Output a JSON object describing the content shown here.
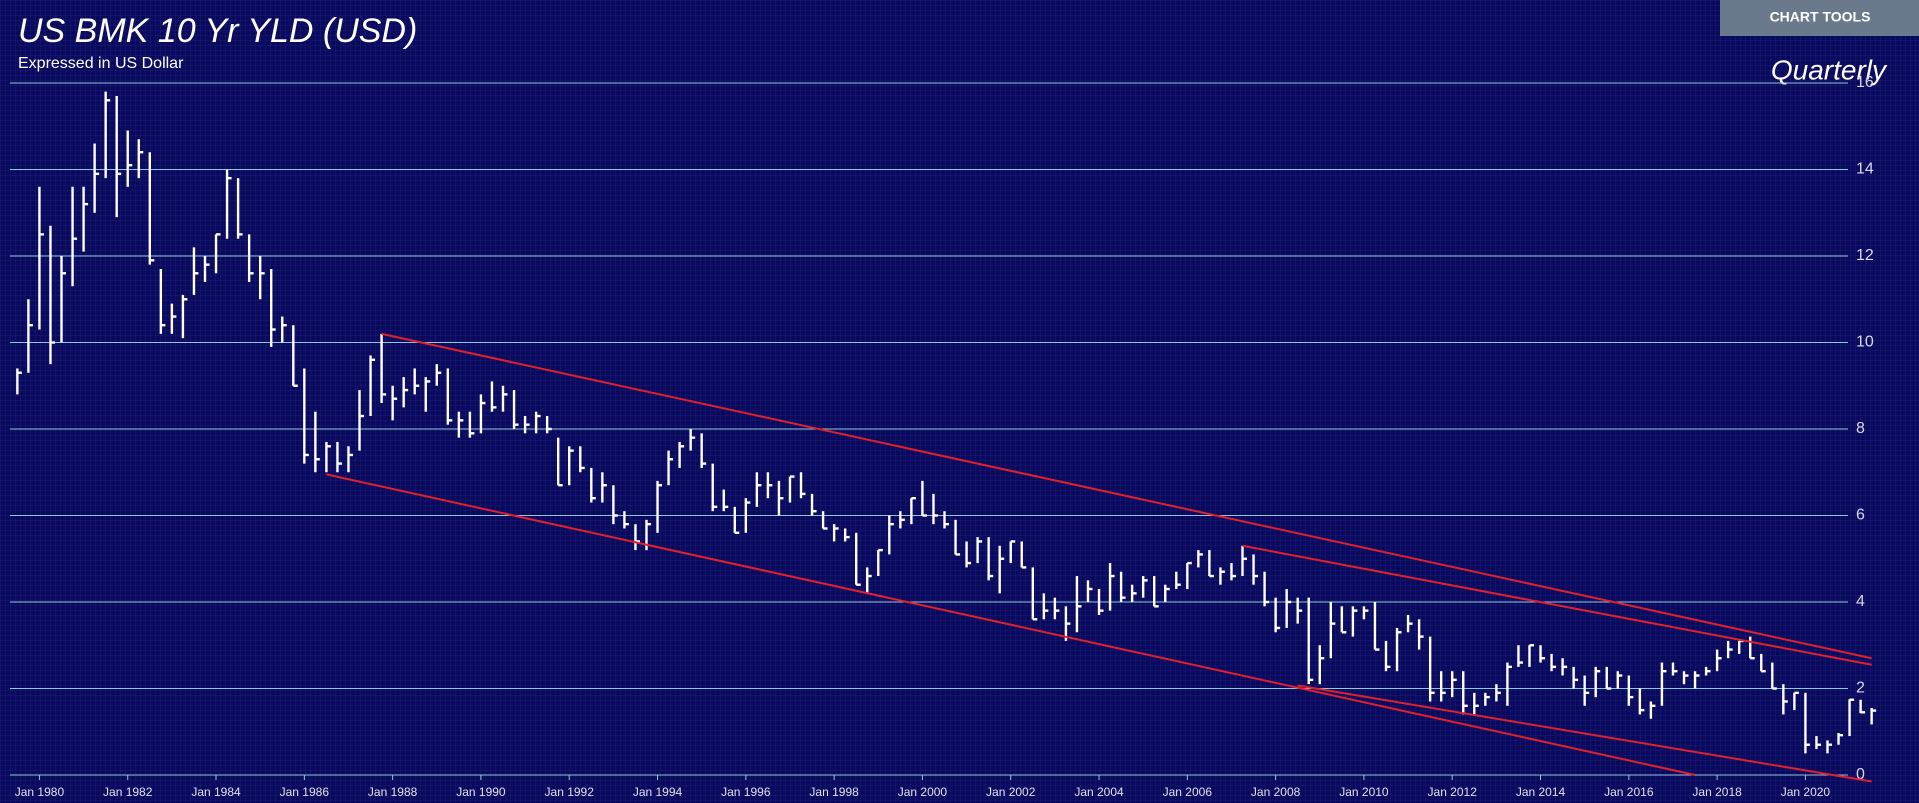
{
  "toolbar": {
    "button": "CHART TOOLS"
  },
  "chart_data": {
    "type": "hlc",
    "title": "US BMK 10 Yr YLD (USD)",
    "subtitle": "Expressed in US Dollar",
    "frequency_label": "Quarterly",
    "color": "#ffffff",
    "x": [
      "1979-07",
      "1979-10",
      "1980-01",
      "1980-04",
      "1980-07",
      "1980-10",
      "1981-01",
      "1981-04",
      "1981-07",
      "1981-10",
      "1982-01",
      "1982-04",
      "1982-07",
      "1982-10",
      "1983-01",
      "1983-04",
      "1983-07",
      "1983-10",
      "1984-01",
      "1984-04",
      "1984-07",
      "1984-10",
      "1985-01",
      "1985-04",
      "1985-07",
      "1985-10",
      "1986-01",
      "1986-04",
      "1986-07",
      "1986-10",
      "1987-01",
      "1987-04",
      "1987-07",
      "1987-10",
      "1988-01",
      "1988-04",
      "1988-07",
      "1988-10",
      "1989-01",
      "1989-04",
      "1989-07",
      "1989-10",
      "1990-01",
      "1990-04",
      "1990-07",
      "1990-10",
      "1991-01",
      "1991-04",
      "1991-07",
      "1991-10",
      "1992-01",
      "1992-04",
      "1992-07",
      "1992-10",
      "1993-01",
      "1993-04",
      "1993-07",
      "1993-10",
      "1994-01",
      "1994-04",
      "1994-07",
      "1994-10",
      "1995-01",
      "1995-04",
      "1995-07",
      "1995-10",
      "1996-01",
      "1996-04",
      "1996-07",
      "1996-10",
      "1997-01",
      "1997-04",
      "1997-07",
      "1997-10",
      "1998-01",
      "1998-04",
      "1998-07",
      "1998-10",
      "1999-01",
      "1999-04",
      "1999-07",
      "1999-10",
      "2000-01",
      "2000-04",
      "2000-07",
      "2000-10",
      "2001-01",
      "2001-04",
      "2001-07",
      "2001-10",
      "2002-01",
      "2002-04",
      "2002-07",
      "2002-10",
      "2003-01",
      "2003-04",
      "2003-07",
      "2003-10",
      "2004-01",
      "2004-04",
      "2004-07",
      "2004-10",
      "2005-01",
      "2005-04",
      "2005-07",
      "2005-10",
      "2006-01",
      "2006-04",
      "2006-07",
      "2006-10",
      "2007-01",
      "2007-04",
      "2007-07",
      "2007-10",
      "2008-01",
      "2008-04",
      "2008-07",
      "2008-10",
      "2009-01",
      "2009-04",
      "2009-07",
      "2009-10",
      "2010-01",
      "2010-04",
      "2010-07",
      "2010-10",
      "2011-01",
      "2011-04",
      "2011-07",
      "2011-10",
      "2012-01",
      "2012-04",
      "2012-07",
      "2012-10",
      "2013-01",
      "2013-04",
      "2013-07",
      "2013-10",
      "2014-01",
      "2014-04",
      "2014-07",
      "2014-10",
      "2015-01",
      "2015-04",
      "2015-07",
      "2015-10",
      "2016-01",
      "2016-04",
      "2016-07",
      "2016-10",
      "2017-01",
      "2017-04",
      "2017-07",
      "2017-10",
      "2018-01",
      "2018-04",
      "2018-07",
      "2018-10",
      "2019-01",
      "2019-04",
      "2019-07",
      "2019-10",
      "2020-01",
      "2020-04",
      "2020-07",
      "2020-10",
      "2021-01",
      "2021-04",
      "2021-07"
    ],
    "high": [
      9.4,
      11.0,
      13.6,
      12.7,
      12.0,
      13.6,
      13.6,
      14.6,
      15.8,
      15.7,
      14.9,
      14.7,
      14.4,
      11.7,
      10.9,
      11.1,
      12.2,
      12.0,
      12.5,
      14.0,
      13.8,
      12.5,
      12.0,
      11.7,
      10.6,
      10.4,
      9.4,
      8.4,
      7.7,
      7.7,
      7.6,
      8.9,
      9.7,
      10.2,
      9.0,
      9.2,
      9.4,
      9.2,
      9.5,
      9.4,
      8.4,
      8.4,
      8.8,
      9.1,
      9.0,
      8.9,
      8.3,
      8.4,
      8.3,
      7.8,
      7.6,
      7.6,
      7.1,
      7.0,
      6.7,
      6.1,
      5.8,
      5.9,
      6.8,
      7.5,
      7.7,
      8.0,
      7.9,
      7.2,
      6.6,
      6.2,
      6.4,
      7.0,
      7.0,
      6.8,
      6.9,
      7.0,
      6.5,
      6.1,
      5.8,
      5.7,
      5.6,
      4.8,
      5.2,
      6.0,
      6.1,
      6.4,
      6.8,
      6.5,
      6.1,
      5.9,
      5.4,
      5.5,
      5.5,
      5.3,
      5.4,
      5.4,
      4.8,
      4.2,
      4.1,
      3.9,
      4.6,
      4.5,
      4.3,
      4.9,
      4.7,
      4.4,
      4.6,
      4.6,
      4.4,
      4.7,
      4.9,
      5.2,
      5.2,
      4.8,
      4.9,
      5.3,
      5.1,
      4.7,
      4.1,
      4.3,
      4.1,
      4.1,
      3.0,
      4.0,
      3.9,
      3.9,
      3.9,
      4.0,
      3.1,
      3.4,
      3.7,
      3.6,
      3.2,
      2.4,
      2.4,
      2.4,
      1.9,
      1.9,
      2.1,
      2.6,
      3.0,
      3.0,
      3.0,
      2.8,
      2.7,
      2.5,
      2.3,
      2.5,
      2.5,
      2.4,
      2.3,
      2.0,
      1.7,
      2.6,
      2.6,
      2.4,
      2.4,
      2.5,
      2.9,
      3.1,
      3.1,
      3.2,
      2.8,
      2.6,
      2.1,
      1.9,
      1.9,
      0.9,
      0.8,
      0.97,
      1.75,
      1.74,
      1.55
    ],
    "low": [
      8.8,
      9.3,
      10.3,
      9.5,
      10.0,
      11.3,
      12.1,
      13.0,
      13.8,
      12.9,
      13.6,
      13.8,
      11.8,
      10.2,
      10.2,
      10.1,
      11.1,
      11.4,
      11.6,
      12.4,
      12.4,
      11.4,
      11.0,
      9.9,
      10.0,
      9.0,
      7.2,
      7.0,
      7.0,
      7.0,
      7.0,
      7.5,
      8.3,
      8.6,
      8.2,
      8.5,
      8.8,
      8.4,
      9.0,
      8.1,
      7.8,
      7.8,
      7.9,
      8.4,
      8.4,
      8.0,
      7.9,
      7.9,
      7.9,
      6.7,
      6.7,
      7.0,
      6.3,
      6.3,
      5.8,
      5.7,
      5.2,
      5.2,
      5.6,
      6.7,
      7.1,
      7.5,
      7.1,
      6.1,
      6.1,
      5.6,
      5.6,
      6.2,
      6.4,
      6.0,
      6.3,
      6.4,
      6.0,
      5.7,
      5.4,
      5.4,
      4.4,
      4.2,
      4.6,
      5.1,
      5.7,
      5.8,
      6.0,
      5.8,
      5.7,
      5.1,
      4.8,
      4.9,
      4.5,
      4.2,
      4.9,
      4.8,
      3.6,
      3.6,
      3.6,
      3.1,
      3.3,
      4.0,
      3.7,
      3.8,
      4.0,
      4.0,
      4.1,
      3.9,
      4.0,
      4.3,
      4.3,
      4.8,
      4.6,
      4.4,
      4.5,
      4.6,
      4.4,
      3.9,
      3.3,
      3.4,
      3.5,
      2.1,
      2.1,
      2.7,
      3.3,
      3.2,
      3.6,
      2.9,
      2.4,
      2.4,
      3.3,
      2.9,
      1.7,
      1.7,
      1.8,
      1.4,
      1.4,
      1.6,
      1.7,
      1.6,
      2.5,
      2.5,
      2.6,
      2.4,
      2.3,
      2.0,
      1.6,
      1.8,
      2.0,
      2.0,
      1.6,
      1.4,
      1.3,
      1.6,
      2.3,
      2.1,
      2.0,
      2.3,
      2.4,
      2.7,
      2.8,
      2.7,
      2.4,
      2.0,
      1.4,
      1.5,
      0.5,
      0.6,
      0.5,
      0.7,
      0.9,
      1.43,
      1.17
    ],
    "close": [
      9.3,
      10.4,
      12.5,
      10.0,
      11.6,
      12.4,
      13.2,
      13.9,
      15.6,
      13.9,
      14.1,
      14.4,
      11.9,
      10.4,
      10.6,
      11.0,
      11.6,
      11.8,
      12.5,
      13.8,
      12.5,
      11.6,
      11.6,
      10.3,
      10.4,
      9.0,
      7.4,
      7.3,
      7.6,
      7.2,
      7.4,
      8.3,
      9.6,
      8.8,
      8.7,
      8.9,
      9.0,
      9.1,
      9.3,
      8.2,
      8.2,
      7.9,
      8.6,
      8.5,
      8.8,
      8.1,
      8.1,
      8.3,
      8.0,
      6.7,
      7.5,
      7.1,
      6.4,
      6.7,
      6.0,
      5.8,
      5.4,
      5.8,
      6.7,
      7.3,
      7.6,
      7.8,
      7.2,
      6.2,
      6.2,
      5.6,
      6.3,
      6.7,
      6.7,
      6.4,
      6.9,
      6.5,
      6.1,
      5.7,
      5.7,
      5.5,
      4.4,
      4.6,
      5.2,
      5.8,
      5.9,
      6.4,
      6.0,
      6.0,
      5.8,
      5.1,
      4.9,
      5.4,
      4.6,
      5.0,
      5.4,
      4.8,
      3.6,
      3.8,
      3.8,
      3.5,
      3.9,
      4.3,
      3.8,
      4.6,
      4.1,
      4.2,
      4.5,
      3.9,
      4.3,
      4.4,
      4.9,
      5.1,
      4.6,
      4.7,
      4.6,
      5.0,
      4.6,
      4.0,
      3.4,
      4.0,
      3.8,
      2.2,
      2.7,
      3.5,
      3.3,
      3.8,
      3.8,
      2.9,
      2.5,
      3.3,
      3.5,
      3.2,
      1.9,
      1.9,
      2.2,
      1.6,
      1.6,
      1.8,
      1.9,
      2.5,
      2.6,
      3.0,
      2.7,
      2.5,
      2.5,
      2.2,
      1.9,
      2.4,
      2.0,
      2.3,
      1.8,
      1.5,
      1.6,
      2.4,
      2.4,
      2.3,
      2.3,
      2.4,
      2.7,
      2.9,
      3.1,
      2.7,
      2.4,
      2.0,
      1.7,
      1.9,
      0.7,
      0.7,
      0.7,
      0.92,
      1.74,
      1.45,
      1.49
    ],
    "xlim": [
      "1979-05",
      "2021-09"
    ],
    "xticks": [
      {
        "value": "1980-01",
        "label": "Jan 1980"
      },
      {
        "value": "1982-01",
        "label": "Jan 1982"
      },
      {
        "value": "1984-01",
        "label": "Jan 1984"
      },
      {
        "value": "1986-01",
        "label": "Jan 1986"
      },
      {
        "value": "1988-01",
        "label": "Jan 1988"
      },
      {
        "value": "1990-01",
        "label": "Jan 1990"
      },
      {
        "value": "1992-01",
        "label": "Jan 1992"
      },
      {
        "value": "1994-01",
        "label": "Jan 1994"
      },
      {
        "value": "1996-01",
        "label": "Jan 1996"
      },
      {
        "value": "1998-01",
        "label": "Jan 1998"
      },
      {
        "value": "2000-01",
        "label": "Jan 2000"
      },
      {
        "value": "2002-01",
        "label": "Jan 2002"
      },
      {
        "value": "2004-01",
        "label": "Jan 2004"
      },
      {
        "value": "2006-01",
        "label": "Jan 2006"
      },
      {
        "value": "2008-01",
        "label": "Jan 2008"
      },
      {
        "value": "2010-01",
        "label": "Jan 2010"
      },
      {
        "value": "2012-01",
        "label": "Jan 2012"
      },
      {
        "value": "2014-01",
        "label": "Jan 2014"
      },
      {
        "value": "2016-01",
        "label": "Jan 2016"
      },
      {
        "value": "2018-01",
        "label": "Jan 2018"
      },
      {
        "value": "2020-01",
        "label": "Jan 2020"
      }
    ],
    "ylim": [
      0,
      16
    ],
    "yticks": [
      0,
      2,
      4,
      6,
      8,
      10,
      12,
      14,
      16
    ],
    "grid": true,
    "trendline_color": "#e0202c",
    "trendlines": [
      {
        "x": [
          "1987-10",
          "2021-07"
        ],
        "y": [
          10.2,
          2.7
        ]
      },
      {
        "x": [
          "2007-04",
          "2021-07"
        ],
        "y": [
          5.3,
          2.55
        ]
      },
      {
        "x": [
          "1986-07",
          "2017-07"
        ],
        "y": [
          6.95,
          0
        ]
      },
      {
        "x": [
          "2008-07",
          "2021-07"
        ],
        "y": [
          2.07,
          -0.15
        ]
      }
    ]
  }
}
